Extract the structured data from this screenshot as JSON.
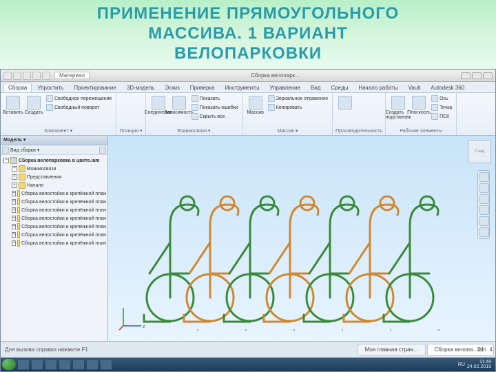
{
  "slide": {
    "title_line1": "ПРИМЕНЕНИЕ ПРЯМОУГОЛЬНОГО",
    "title_line2": "МАССИВА. 1 ВАРИАНТ",
    "title_line3": "ВЕЛОПАРКОВКИ",
    "title_color": "#2a9ba8",
    "bg_gradient": [
      "#b8f0c8",
      "#e8faf0"
    ]
  },
  "app": {
    "qat_material_label": "Материал",
    "doc_title": "Сборка велопарк...",
    "tabs": [
      "Сборка",
      "Упростить",
      "Проектирование",
      "3D-модель",
      "Эскиз",
      "Проверка",
      "Инструменты",
      "Управление",
      "Вид",
      "Среды",
      "Начало работы",
      "Vault",
      "Autodesk 360"
    ],
    "active_tab": 0
  },
  "ribbon": {
    "panels": [
      {
        "label": "Компонент ▾",
        "big": [
          {
            "label": "Вставить"
          },
          {
            "label": "Создать"
          }
        ],
        "small": [
          {
            "label": "Свободное перемещение"
          },
          {
            "label": "Свободный поворот"
          }
        ]
      },
      {
        "label": "Позиция ▾",
        "big": [],
        "small": []
      },
      {
        "label": "Взаимосвязи ▾",
        "big": [
          {
            "label": "Соединение"
          },
          {
            "label": "Зависимость"
          }
        ],
        "small": [
          {
            "label": "Показать"
          },
          {
            "label": "Показать ошибки"
          },
          {
            "label": "Скрыть все"
          }
        ]
      },
      {
        "label": "Массив ▾",
        "big": [
          {
            "label": "Массив"
          }
        ],
        "small": [
          {
            "label": "Зеркальное отражение"
          },
          {
            "label": "Копировать"
          }
        ]
      },
      {
        "label": "Производительность",
        "big": [
          {
            "label": ""
          }
        ],
        "small": []
      },
      {
        "label": "Рабочие элементы",
        "big": [
          {
            "label": "Создать подстановк"
          },
          {
            "label": "Плоскость"
          }
        ],
        "small": [
          {
            "label": "Ось"
          },
          {
            "label": "Точка"
          },
          {
            "label": "ПСК"
          }
        ]
      }
    ]
  },
  "browser": {
    "header": "Модель ▾",
    "toolbar_item": "Вид сборки ▾",
    "root": "Сборка велопарковка в цвете.iam",
    "items": [
      "Взаимосвязи",
      "Представления",
      "Начало",
      "Сборка велостойки и крепёжной план",
      "Сборка велостойки и крепёжной план",
      "Сборка велостойки и крепёжной план",
      "Сборка велостойки и крепёжной план",
      "Сборка велостойки и крепёжной план",
      "Сборка велостойки и крепёжной план",
      "Сборка велостойки и крепёжной план"
    ]
  },
  "viewport": {
    "viewcube_label": "Сзад",
    "bg_top": "#c8e4f8",
    "bg_bottom": "#e8f4ff",
    "bike_colors": [
      "#3a8a3a",
      "#d08830",
      "#3a8a3a",
      "#d08830",
      "#3a8a3a",
      "#d08830",
      "#3a8a3a"
    ],
    "bike_count": 7,
    "bike_spacing": 58,
    "axes": {
      "x_color": "#d02020",
      "y_color": "#20a020",
      "z_color": "#2060d0",
      "z_label": "z"
    }
  },
  "doctabs": {
    "hint": "Для вызова справки нажмите F1",
    "tabs": [
      {
        "label": "Моя главная стран...",
        "active": false
      },
      {
        "label": "Сборка велопа...iam",
        "active": true
      }
    ],
    "status_right": [
      "21",
      "4"
    ]
  },
  "taskbar": {
    "buttons": 7,
    "lang": "RU",
    "time": "11:49",
    "date": "24.02.2019"
  }
}
